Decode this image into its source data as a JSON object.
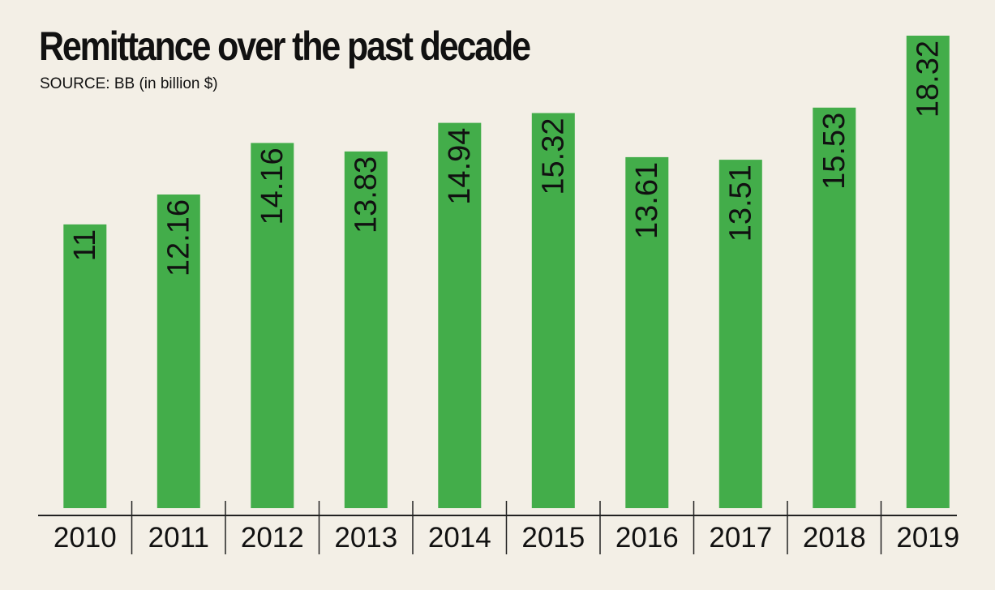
{
  "title": "Remittance over the past decade",
  "subtitle": "SOURCE: BB (in billion $)",
  "colors": {
    "bar": "#43ad4a",
    "background": "#f3efe6",
    "text": "#111111",
    "axis": "#222222"
  },
  "chart_data": {
    "type": "bar",
    "title": "Remittance over the past decade",
    "subtitle": "SOURCE: BB (in billion $)",
    "categories": [
      "2010",
      "2011",
      "2012",
      "2013",
      "2014",
      "2015",
      "2016",
      "2017",
      "2018",
      "2019"
    ],
    "values": [
      11,
      12.16,
      14.16,
      13.83,
      14.94,
      15.32,
      13.61,
      13.51,
      15.53,
      18.32
    ],
    "data_labels": [
      "11",
      "12.16",
      "14.16",
      "13.83",
      "14.94",
      "15.32",
      "13.61",
      "13.51",
      "15.53",
      "18.32"
    ],
    "data_label_orientation": "vertical, inside bar top",
    "xlabel": "",
    "ylabel": "",
    "y_axis_shown": false,
    "grid": false,
    "legend": "none"
  }
}
